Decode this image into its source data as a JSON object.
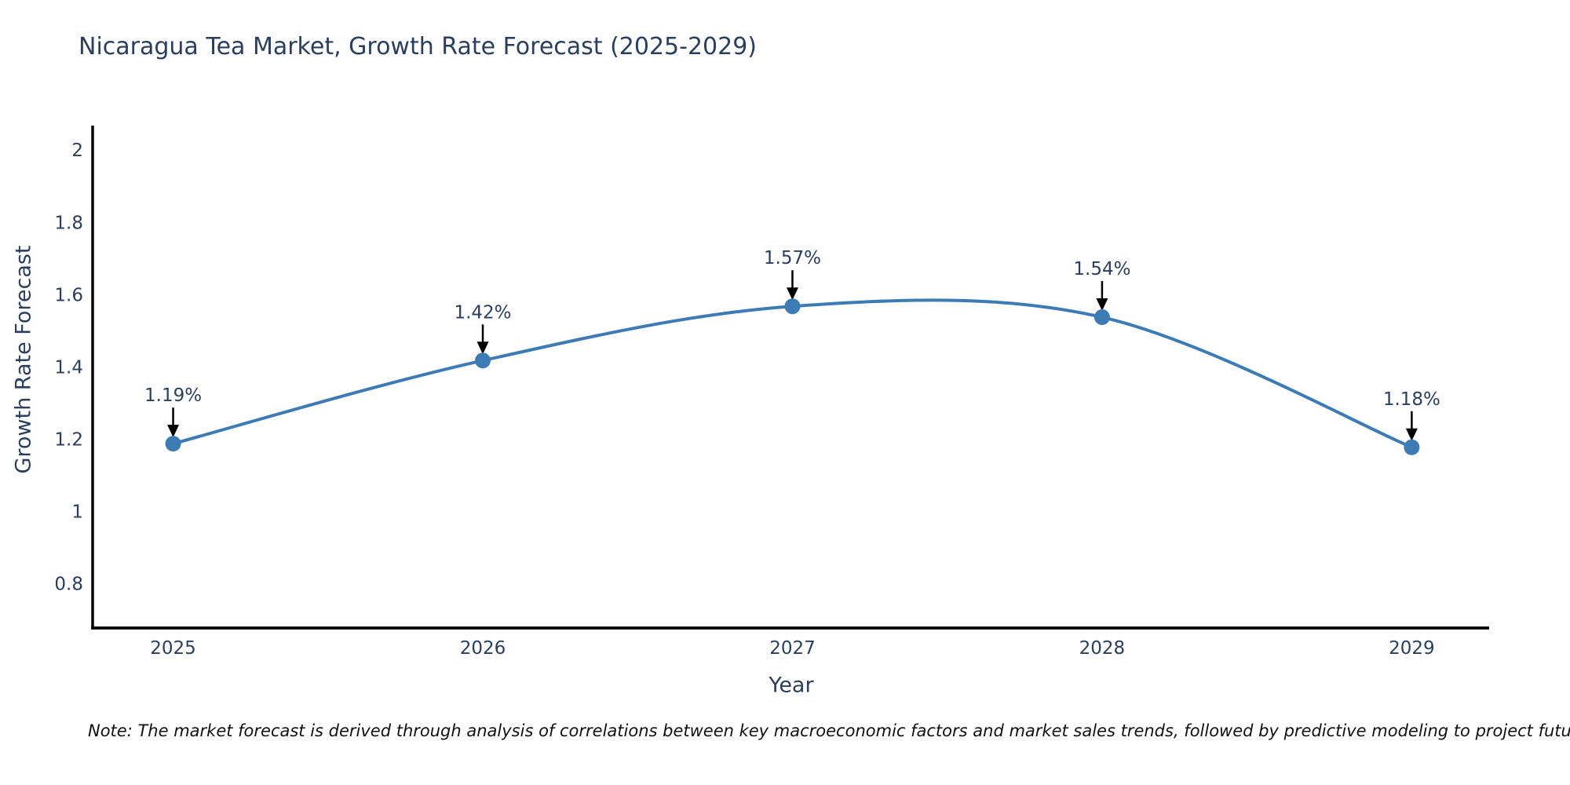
{
  "title": "Nicaragua Tea Market, Growth Rate Forecast (2025-2029)",
  "note": "Note: The market forecast is derived through analysis of correlations between key macroeconomic factors and market sales trends, followed by predictive modeling to project future sales",
  "colors": {
    "line": "#3d7bb5",
    "marker": "#3d7bb5",
    "text": "#2a3f5f",
    "axis_line": "#000000",
    "annotation_arrow": "#000000",
    "note_text": "#111111",
    "background": "#ffffff"
  },
  "chart_data": {
    "type": "line",
    "title": "Nicaragua Tea Market, Growth Rate Forecast (2025-2029)",
    "xlabel": "Year",
    "ylabel": "Growth Rate Forecast",
    "categories": [
      2025,
      2026,
      2027,
      2028,
      2029
    ],
    "values": [
      1.19,
      1.42,
      1.57,
      1.54,
      1.18
    ],
    "point_labels": [
      "1.19%",
      "1.42%",
      "1.57%",
      "1.54%",
      "1.18%"
    ],
    "yticks": [
      0.8,
      1,
      1.2,
      1.4,
      1.6,
      1.8,
      2
    ],
    "xticks": [
      2025,
      2026,
      2027,
      2028,
      2029
    ],
    "ylim": [
      0.68,
      2.07
    ],
    "xlim": [
      2024.74,
      2029.25
    ],
    "line_shape": "spline",
    "grid": false,
    "legend_position": "none",
    "annotations_style": "label-with-down-arrow"
  }
}
